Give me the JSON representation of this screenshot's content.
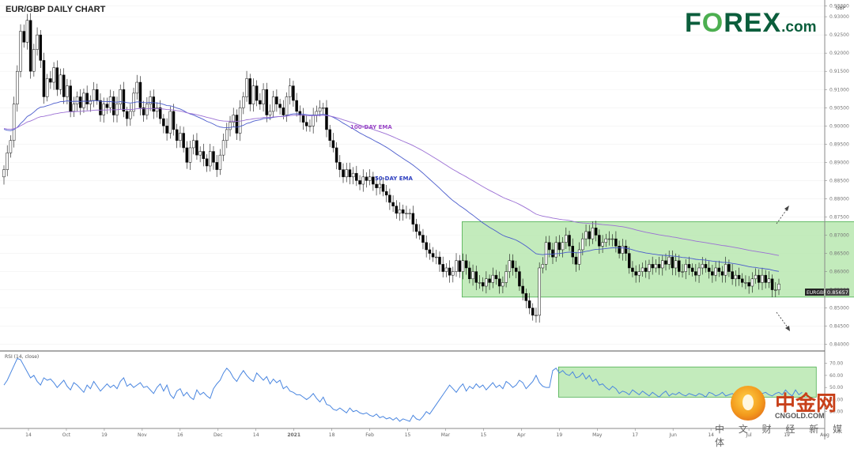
{
  "chart_data": {
    "type": "candlestick",
    "title": "EUR/GBP DAILY CHART",
    "currency_label": "GBP",
    "symbol_tag": "EURGBP",
    "last_price": "0.85657",
    "price_ticks": [
      "0.93300",
      "0.93000",
      "0.92500",
      "0.92000",
      "0.91500",
      "0.91000",
      "0.90500",
      "0.90000",
      "0.89500",
      "0.89000",
      "0.88500",
      "0.88000",
      "0.87500",
      "0.87000",
      "0.86500",
      "0.86000",
      "0.85500",
      "0.85000",
      "0.84500",
      "0.84000"
    ],
    "ylim": [
      0.8395,
      0.9335
    ],
    "x_ticks": [
      "14",
      "Oct",
      "19",
      "Nov",
      "16",
      "Dec",
      "14",
      "2021",
      "18",
      "Feb",
      "15",
      "Mar",
      "15",
      "Apr",
      "19",
      "May",
      "17",
      "Jun",
      "14",
      "Jul",
      "19",
      "Aug"
    ],
    "year_tick": "2021",
    "annotations": {
      "ema100": "100-DAY EMA",
      "ema50": "50-DAY EMA"
    },
    "range_box": {
      "start_index": 138,
      "end_index": 265,
      "low": 0.853,
      "high": 0.8737
    },
    "closes": [
      0.888,
      0.8926,
      0.896,
      0.906,
      0.915,
      0.926,
      0.923,
      0.929,
      0.915,
      0.921,
      0.925,
      0.918,
      0.908,
      0.913,
      0.912,
      0.916,
      0.91,
      0.914,
      0.908,
      0.911,
      0.904,
      0.906,
      0.908,
      0.905,
      0.909,
      0.906,
      0.907,
      0.91,
      0.907,
      0.903,
      0.906,
      0.905,
      0.908,
      0.903,
      0.906,
      0.91,
      0.904,
      0.902,
      0.904,
      0.909,
      0.912,
      0.905,
      0.903,
      0.906,
      0.908,
      0.904,
      0.905,
      0.902,
      0.9,
      0.898,
      0.904,
      0.899,
      0.896,
      0.898,
      0.894,
      0.89,
      0.894,
      0.896,
      0.892,
      0.893,
      0.891,
      0.889,
      0.893,
      0.89,
      0.888,
      0.892,
      0.896,
      0.899,
      0.901,
      0.903,
      0.898,
      0.905,
      0.908,
      0.913,
      0.906,
      0.911,
      0.907,
      0.906,
      0.91,
      0.903,
      0.904,
      0.908,
      0.906,
      0.905,
      0.903,
      0.908,
      0.911,
      0.907,
      0.904,
      0.903,
      0.901,
      0.9,
      0.9,
      0.903,
      0.904,
      0.905,
      0.905,
      0.899,
      0.896,
      0.894,
      0.89,
      0.888,
      0.886,
      0.888,
      0.886,
      0.887,
      0.885,
      0.884,
      0.886,
      0.885,
      0.886,
      0.884,
      0.883,
      0.884,
      0.882,
      0.881,
      0.879,
      0.878,
      0.876,
      0.877,
      0.876,
      0.876,
      0.876,
      0.873,
      0.871,
      0.87,
      0.868,
      0.866,
      0.865,
      0.864,
      0.864,
      0.862,
      0.86,
      0.861,
      0.859,
      0.86,
      0.863,
      0.86,
      0.863,
      0.861,
      0.858,
      0.86,
      0.857,
      0.857,
      0.856,
      0.858,
      0.857,
      0.859,
      0.858,
      0.856,
      0.857,
      0.86,
      0.863,
      0.861,
      0.86,
      0.856,
      0.854,
      0.852,
      0.85,
      0.848,
      0.848,
      0.861,
      0.862,
      0.868,
      0.866,
      0.864,
      0.868,
      0.866,
      0.868,
      0.87,
      0.867,
      0.864,
      0.862,
      0.866,
      0.869,
      0.871,
      0.869,
      0.872,
      0.87,
      0.867,
      0.868,
      0.869,
      0.869,
      0.869,
      0.867,
      0.865,
      0.867,
      0.865,
      0.861,
      0.86,
      0.859,
      0.86,
      0.861,
      0.86,
      0.862,
      0.861,
      0.862,
      0.861,
      0.863,
      0.862,
      0.864,
      0.861,
      0.863,
      0.86,
      0.86,
      0.862,
      0.861,
      0.86,
      0.859,
      0.861,
      0.862,
      0.861,
      0.86,
      0.859,
      0.861,
      0.86,
      0.859,
      0.862,
      0.86,
      0.858,
      0.859,
      0.858,
      0.857,
      0.857,
      0.856,
      0.858,
      0.859,
      0.857,
      0.859,
      0.857,
      0.858,
      0.855,
      0.855,
      0.8566
    ],
    "rsi": {
      "label": "RSI (14, close)",
      "ticks": [
        "70.00",
        "60.00",
        "50.00",
        "40.00",
        "30.00"
      ],
      "ylim": [
        20,
        75
      ],
      "range_box": {
        "start_index": 167,
        "end_index": 244,
        "low": 42,
        "high": 67
      },
      "values": [
        52,
        56,
        62,
        68,
        74,
        73,
        68,
        63,
        58,
        60,
        55,
        52,
        58,
        56,
        57,
        54,
        50,
        53,
        56,
        51,
        48,
        54,
        52,
        49,
        46,
        52,
        49,
        55,
        51,
        47,
        50,
        53,
        50,
        52,
        49,
        55,
        58,
        51,
        53,
        50,
        52,
        54,
        50,
        51,
        48,
        45,
        50,
        53,
        47,
        52,
        44,
        41,
        47,
        49,
        43,
        46,
        42,
        40,
        48,
        44,
        46,
        43,
        41,
        49,
        53,
        56,
        62,
        66,
        63,
        58,
        55,
        60,
        64,
        60,
        57,
        55,
        62,
        59,
        56,
        59,
        53,
        57,
        54,
        56,
        49,
        51,
        47,
        46,
        44,
        44,
        42,
        40,
        42,
        45,
        41,
        38,
        42,
        36,
        35,
        32,
        31,
        33,
        31,
        29,
        33,
        30,
        31,
        29,
        28,
        29,
        27,
        26,
        28,
        25,
        26,
        24,
        25,
        23,
        25,
        22,
        24,
        23,
        22,
        27,
        24,
        23,
        26,
        30,
        28,
        32,
        36,
        40,
        44,
        48,
        52,
        49,
        46,
        50,
        53,
        47,
        51,
        49,
        53,
        50,
        52,
        48,
        51,
        54,
        50,
        52,
        49,
        55,
        53,
        50,
        52,
        56,
        54,
        49,
        52,
        55,
        60,
        54,
        51,
        50,
        50,
        64,
        66,
        62,
        64,
        61,
        60,
        63,
        58,
        59,
        62,
        57,
        60,
        55,
        57,
        52,
        53,
        50,
        48,
        51,
        49,
        45,
        47,
        46,
        44,
        48,
        46,
        44,
        47,
        45,
        43,
        46,
        44,
        42,
        45,
        47,
        43,
        45,
        44,
        46,
        44,
        43,
        45,
        44,
        43,
        45,
        44,
        42,
        46,
        45,
        43,
        44,
        46,
        43,
        44,
        45,
        43,
        44,
        42,
        46,
        48,
        45,
        43,
        44,
        45,
        46,
        44,
        43,
        45,
        46,
        44,
        48,
        45,
        43,
        48,
        44,
        46
      ]
    }
  },
  "branding": {
    "logo_f": "F",
    "logo_o": "O",
    "logo_rest": "REX",
    "logo_tld": ".com",
    "watermark_main": "中金网",
    "watermark_url": "CNGOLD.COM",
    "watermark_sub": "中 文 财 经 新 媒 体"
  },
  "colors": {
    "up": "#ffffff",
    "down": "#000000",
    "ema100": "#9b6fd4",
    "ema50": "#4a5bcc",
    "rsi": "#4a86e0",
    "range_fill": "#b9e8b0",
    "range_stroke": "#4caf50",
    "annotation_100": "#9a47c7",
    "annotation_50": "#2f40c0"
  }
}
